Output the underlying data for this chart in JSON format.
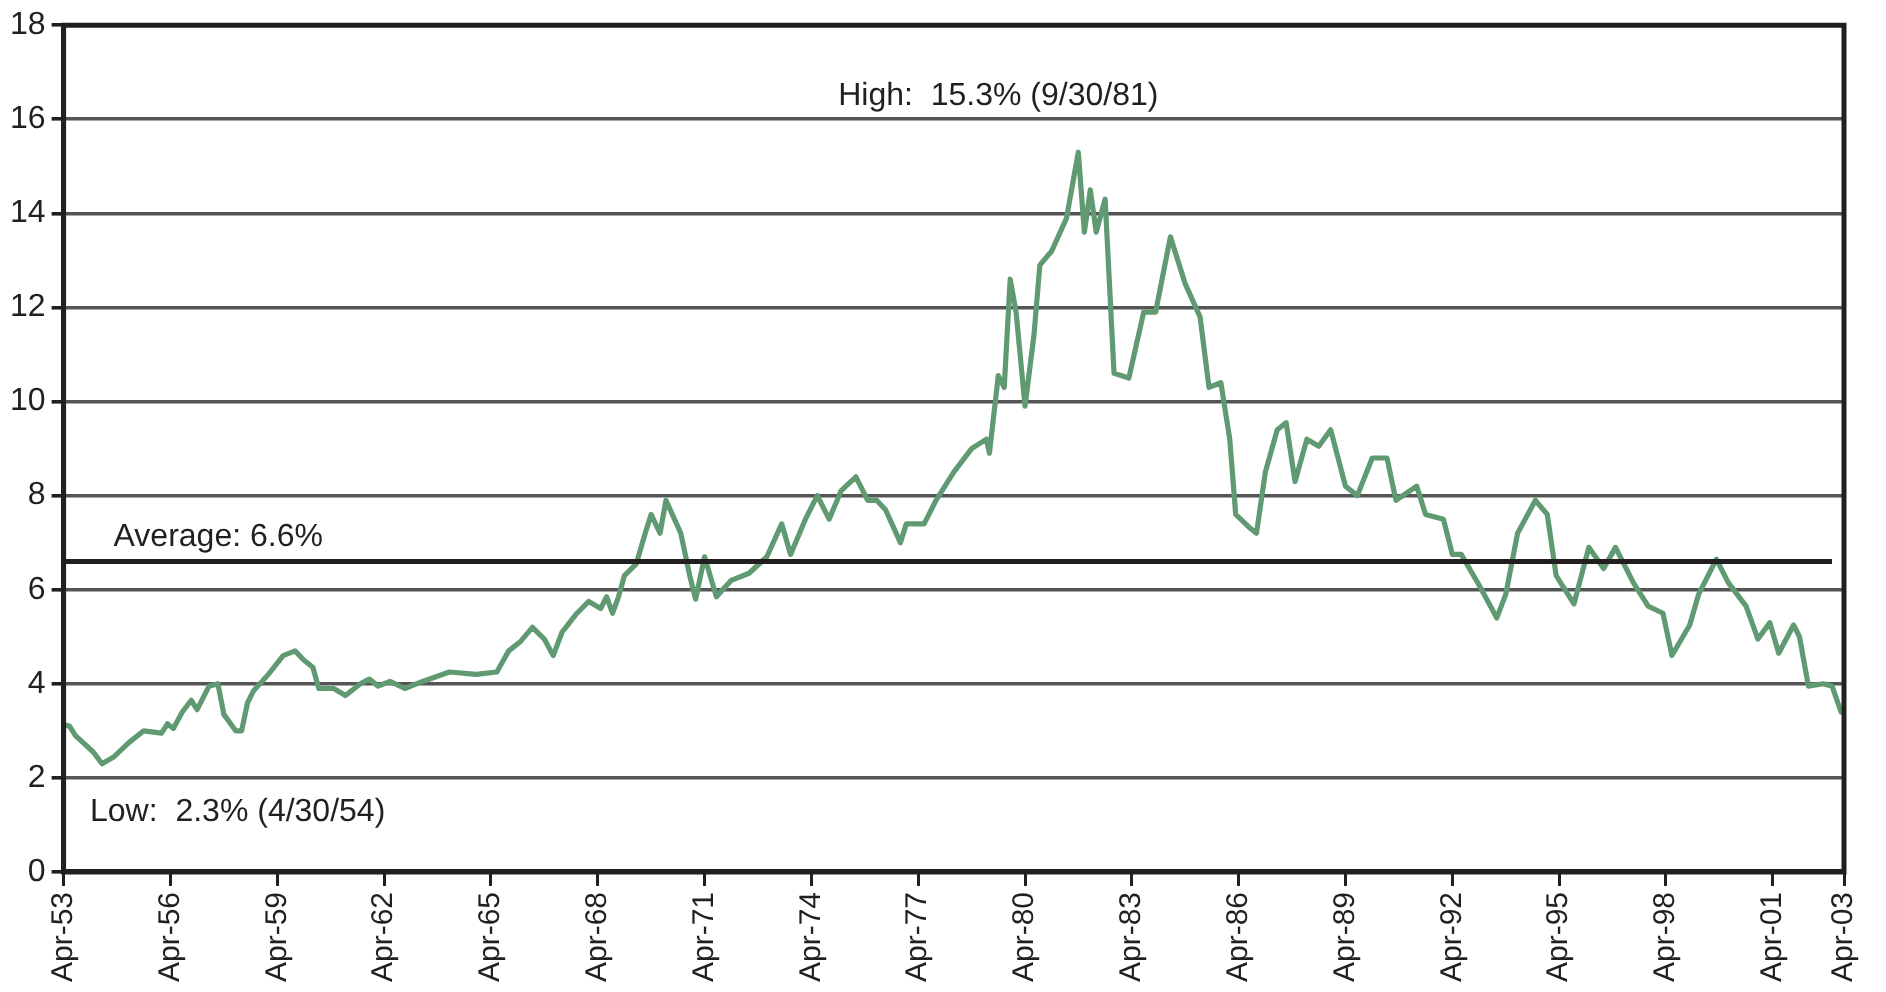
{
  "chart_data": {
    "type": "line",
    "x": [
      "1953-04",
      "1953-06",
      "1953-08",
      "1954-02",
      "1954-04-30",
      "1954-09",
      "1955-02",
      "1955-07",
      "1956-01",
      "1956-03",
      "1956-05",
      "1956-08",
      "1956-11",
      "1957-01",
      "1957-05",
      "1957-08",
      "1957-10",
      "1958-02",
      "1958-04",
      "1958-06",
      "1958-08",
      "1959-01",
      "1959-06",
      "1959-10",
      "1960-01",
      "1960-04",
      "1960-06",
      "1960-11",
      "1961-03",
      "1961-08",
      "1961-11",
      "1962-02",
      "1962-06",
      "1962-11",
      "1963-05",
      "1964-02",
      "1964-11",
      "1965-06",
      "1965-10",
      "1966-02",
      "1966-06",
      "1966-10",
      "1967-01",
      "1967-04",
      "1967-09",
      "1968-01",
      "1968-05",
      "1968-07",
      "1968-09",
      "1968-11",
      "1969-01",
      "1969-05",
      "1969-08",
      "1969-10",
      "1970-01",
      "1970-03",
      "1970-08",
      "1970-11",
      "1971-01",
      "1971-04",
      "1971-08",
      "1972-01",
      "1972-07",
      "1973-01",
      "1973-06",
      "1973-09",
      "1974-02",
      "1974-06",
      "1974-10",
      "1975-02",
      "1975-07",
      "1975-11",
      "1976-02",
      "1976-05",
      "1976-10",
      "1976-12",
      "1977-06",
      "1977-10",
      "1978-04",
      "1978-10",
      "1979-03",
      "1979-04",
      "1979-07",
      "1979-09",
      "1979-11",
      "1980-01",
      "1980-04",
      "1980-07",
      "1980-09",
      "1981-01",
      "1981-06",
      "1981-09-30",
      "1981-12",
      "1982-02",
      "1982-04",
      "1982-07",
      "1982-10",
      "1983-03",
      "1983-08",
      "1983-12",
      "1984-05",
      "1984-10",
      "1985-03",
      "1985-06",
      "1985-10",
      "1986-01",
      "1986-03",
      "1986-08",
      "1986-10",
      "1987-01",
      "1987-05",
      "1987-08",
      "1987-11",
      "1988-03",
      "1988-07",
      "1988-11",
      "1989-04",
      "1989-08",
      "1990-01",
      "1990-06",
      "1990-09",
      "1991-04",
      "1991-07",
      "1992-01",
      "1992-04",
      "1992-07",
      "1993-01",
      "1993-07",
      "1993-10",
      "1994-02",
      "1994-08",
      "1994-12",
      "1995-03",
      "1995-09",
      "1996-02",
      "1996-07",
      "1996-11",
      "1997-05",
      "1997-10",
      "1998-03",
      "1998-06",
      "1998-12",
      "1999-03",
      "1999-09",
      "2000-01",
      "2000-07",
      "2000-11",
      "2001-03",
      "2001-06",
      "2001-11",
      "2002-01",
      "2002-04",
      "2002-09",
      "2002-12",
      "2003-03"
    ],
    "series": [
      {
        "color": "#5f9a72",
        "values": [
          3.13,
          3.1,
          2.9,
          2.55,
          2.3,
          2.45,
          2.75,
          3.0,
          2.95,
          3.15,
          3.05,
          3.4,
          3.65,
          3.45,
          3.95,
          4.0,
          3.35,
          3.0,
          3.0,
          3.6,
          3.85,
          4.2,
          4.6,
          4.7,
          4.5,
          4.35,
          3.9,
          3.9,
          3.75,
          4.0,
          4.1,
          3.95,
          4.05,
          3.9,
          4.05,
          4.25,
          4.2,
          4.25,
          4.7,
          4.9,
          5.2,
          4.95,
          4.6,
          5.1,
          5.5,
          5.75,
          5.6,
          5.85,
          5.5,
          5.85,
          6.3,
          6.55,
          7.2,
          7.6,
          7.2,
          7.9,
          7.2,
          6.3,
          5.8,
          6.7,
          5.85,
          6.2,
          6.35,
          6.7,
          7.4,
          6.75,
          7.5,
          8.0,
          7.5,
          8.1,
          8.4,
          7.9,
          7.9,
          7.7,
          7.0,
          7.4,
          7.4,
          7.9,
          8.5,
          9.0,
          9.2,
          8.9,
          10.55,
          10.3,
          12.6,
          11.9,
          9.9,
          11.4,
          12.9,
          13.2,
          13.9,
          15.3,
          13.6,
          14.5,
          13.6,
          14.3,
          10.6,
          10.5,
          11.9,
          11.9,
          13.5,
          12.5,
          11.8,
          10.3,
          10.4,
          9.2,
          7.6,
          7.3,
          7.2,
          8.5,
          9.4,
          9.55,
          8.3,
          9.2,
          9.05,
          9.4,
          8.2,
          8.0,
          8.8,
          8.8,
          7.9,
          8.2,
          7.6,
          7.5,
          6.75,
          6.75,
          6.1,
          5.4,
          5.9,
          7.2,
          7.9,
          7.6,
          6.3,
          5.7,
          6.9,
          6.45,
          6.9,
          6.15,
          5.65,
          5.5,
          4.6,
          5.25,
          5.9,
          6.65,
          6.15,
          5.65,
          4.95,
          5.3,
          4.65,
          5.25,
          5.0,
          3.95,
          4.0,
          3.95,
          3.4
        ]
      }
    ],
    "xlim": [
      "1953-04",
      "2003-04"
    ],
    "xticks": [
      {
        "value": "1953-04",
        "label": "Apr-53"
      },
      {
        "value": "1956-04",
        "label": "Apr-56"
      },
      {
        "value": "1959-04",
        "label": "Apr-59"
      },
      {
        "value": "1962-04",
        "label": "Apr-62"
      },
      {
        "value": "1965-04",
        "label": "Apr-65"
      },
      {
        "value": "1968-04",
        "label": "Apr-68"
      },
      {
        "value": "1971-04",
        "label": "Apr-71"
      },
      {
        "value": "1974-04",
        "label": "Apr-74"
      },
      {
        "value": "1977-04",
        "label": "Apr-77"
      },
      {
        "value": "1980-04",
        "label": "Apr-80"
      },
      {
        "value": "1983-04",
        "label": "Apr-83"
      },
      {
        "value": "1986-04",
        "label": "Apr-86"
      },
      {
        "value": "1989-04",
        "label": "Apr-89"
      },
      {
        "value": "1992-04",
        "label": "Apr-92"
      },
      {
        "value": "1995-04",
        "label": "Apr-95"
      },
      {
        "value": "1998-04",
        "label": "Apr-98"
      },
      {
        "value": "2001-04",
        "label": "Apr-01"
      },
      {
        "value": "2003-04",
        "label": "Apr-03"
      }
    ],
    "ylim": [
      0,
      18
    ],
    "yticks": [
      0,
      2,
      4,
      6,
      8,
      10,
      12,
      14,
      16,
      18
    ],
    "grid": "y",
    "legend": false,
    "marker": "none",
    "line_style": "solid",
    "ref_lines": [
      {
        "axis": "y",
        "value": 6.6,
        "label": "Average: 6.6%",
        "color": "#231f20"
      }
    ],
    "annotations": [
      {
        "text": "High:  15.3% (9/30/81)",
        "x": "1981-09-30",
        "y": 15.3
      },
      {
        "text": "Low:  2.3% (4/30/54)",
        "x": "1954-04-30",
        "y": 2.3
      }
    ]
  }
}
